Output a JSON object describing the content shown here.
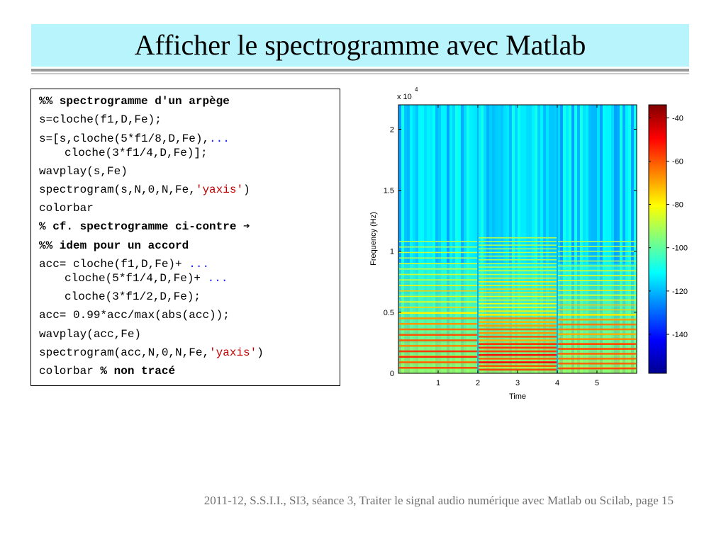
{
  "slide": {
    "title": "Afficher le spectrogramme avec Matlab",
    "footer": "2011-12, S.S.I.I., SI3, séance 3, Traiter le signal audio numérique avec Matlab ou Scilab, page 15"
  },
  "code": {
    "l1": "%% spectrogramme d'un arpège",
    "l2": "s=cloche(f1,D,Fe);",
    "l3a": "s=[s,cloche(5*f1/8,D,Fe),",
    "l3dots": "...",
    "l3b": "cloche(3*f1/4,D,Fe)];",
    "l4": "wavplay(s,Fe)",
    "l5a": "spectrogram(s,N,0,N,Fe,",
    "l5str": "'yaxis'",
    "l5b": ")",
    "l6": "colorbar",
    "l7": "% cf. spectrogramme ci-contre ➔",
    "l8": "%% idem pour un accord",
    "l9a": "acc= cloche(f1,D,Fe)+ ",
    "l9dots": "...",
    "l9b": "cloche(5*f1/4,D,Fe)+ ",
    "l9dots2": "...",
    "l10": "cloche(3*f1/2,D,Fe);",
    "l11": "acc= 0.99*acc/max(abs(acc));",
    "l12": "wavplay(acc,Fe)",
    "l13a": "spectrogram(acc,N,0,N,Fe,",
    "l13str": "'yaxis'",
    "l13b": ")",
    "l14a": "colorbar ",
    "l14b": "% non tracé"
  },
  "chart_data": {
    "type": "heatmap",
    "xlabel": "Time",
    "ylabel": "Frequency (Hz)",
    "y_multiplier": "x 10",
    "y_exponent": "4",
    "x_ticks": [
      1,
      2,
      3,
      4,
      5
    ],
    "y_ticks": [
      0,
      0.5,
      1,
      1.5,
      2
    ],
    "xlim": [
      0,
      6
    ],
    "ylim": [
      0,
      2.2
    ],
    "segments_end_time": [
      2,
      4,
      6
    ],
    "colorbar_ticks": [
      -40,
      -60,
      -80,
      -100,
      -120,
      -140
    ],
    "colorbar_range": [
      -158,
      -34
    ],
    "colormap": "jet"
  }
}
